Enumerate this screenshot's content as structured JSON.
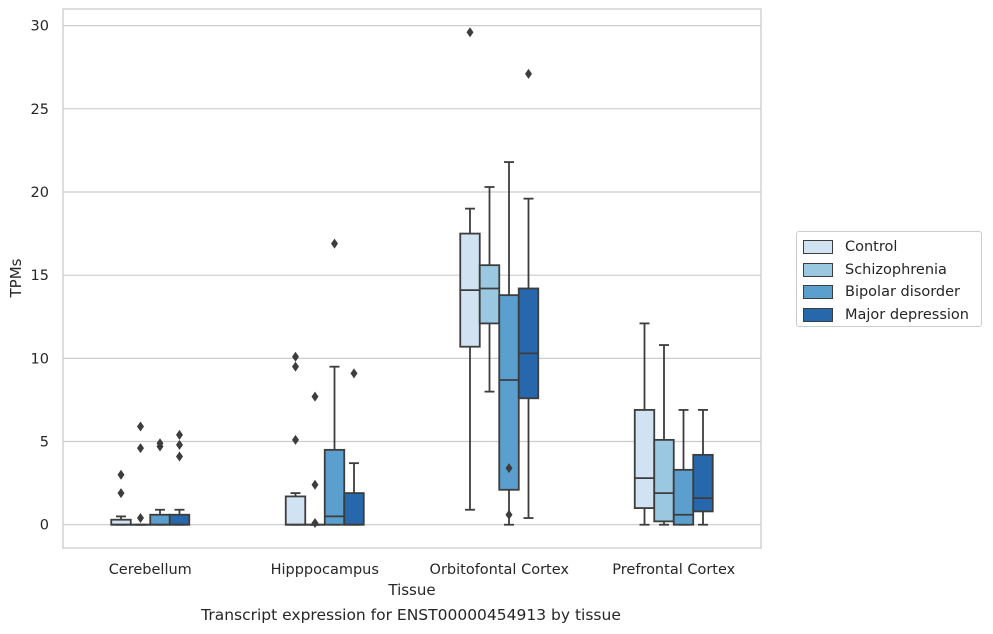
{
  "chart_data": {
    "type": "box",
    "title": "",
    "xlabel": "Tissue",
    "ylabel": "TPMs",
    "ylim": [
      -1.4,
      31.0
    ],
    "yticks": [
      0,
      5,
      10,
      15,
      20,
      25,
      30
    ],
    "grid": "horizontal",
    "legend_position": "right",
    "categories": [
      "Cerebellum",
      "Hipppocampus",
      "Orbitofontal Cortex",
      "Prefrontal Cortex"
    ],
    "series": [
      {
        "name": "Control",
        "color": "#d1e2f2",
        "boxes": [
          {
            "whislo": 0,
            "q1": 0,
            "med": 0,
            "q3": 0.3,
            "whishi": 0.5,
            "fliers": [
              1.9,
              3.0
            ]
          },
          {
            "whislo": 0,
            "q1": 0,
            "med": 0,
            "q3": 1.7,
            "whishi": 1.9,
            "fliers": [
              5.1,
              9.5,
              10.1
            ]
          },
          {
            "whislo": 0.9,
            "q1": 10.7,
            "med": 14.1,
            "q3": 17.5,
            "whishi": 19.0,
            "fliers": [
              29.6
            ]
          },
          {
            "whislo": 0,
            "q1": 1.0,
            "med": 2.8,
            "q3": 6.9,
            "whishi": 12.1,
            "fliers": []
          }
        ]
      },
      {
        "name": "Schizophrenia",
        "color": "#9ac8e0",
        "boxes": [
          {
            "whislo": 0,
            "q1": 0,
            "med": 0,
            "q3": 0,
            "whishi": 0,
            "fliers": [
              0.4,
              4.6,
              5.9
            ]
          },
          {
            "whislo": 0,
            "q1": 0,
            "med": 0,
            "q3": 0,
            "whishi": 0,
            "fliers": [
              0.1,
              2.4,
              7.7
            ]
          },
          {
            "whislo": 8.0,
            "q1": 12.1,
            "med": 14.2,
            "q3": 15.6,
            "whishi": 20.3,
            "fliers": []
          },
          {
            "whislo": 0,
            "q1": 0.2,
            "med": 1.9,
            "q3": 5.1,
            "whishi": 10.8,
            "fliers": []
          }
        ]
      },
      {
        "name": "Bipolar disorder",
        "color": "#5a9fcd",
        "boxes": [
          {
            "whislo": 0,
            "q1": 0,
            "med": 0,
            "q3": 0.6,
            "whishi": 0.9,
            "fliers": [
              4.7,
              4.9
            ]
          },
          {
            "whislo": 0,
            "q1": 0,
            "med": 0.5,
            "q3": 4.5,
            "whishi": 9.5,
            "fliers": [
              16.9
            ]
          },
          {
            "whislo": 0,
            "q1": 2.1,
            "med": 8.7,
            "q3": 13.8,
            "whishi": 21.8,
            "fliers": [
              0.6,
              3.4
            ]
          },
          {
            "whislo": 0,
            "q1": 0,
            "med": 0.6,
            "q3": 3.3,
            "whishi": 6.9,
            "fliers": []
          }
        ]
      },
      {
        "name": "Major depression",
        "color": "#2668ab",
        "boxes": [
          {
            "whislo": 0,
            "q1": 0,
            "med": 0,
            "q3": 0.6,
            "whishi": 0.9,
            "fliers": [
              4.1,
              4.8,
              5.4
            ]
          },
          {
            "whislo": 0,
            "q1": 0,
            "med": 0,
            "q3": 1.9,
            "whishi": 3.7,
            "fliers": [
              9.1
            ]
          },
          {
            "whislo": 0.4,
            "q1": 7.6,
            "med": 10.3,
            "q3": 14.2,
            "whishi": 19.6,
            "fliers": [
              27.1
            ]
          },
          {
            "whislo": 0,
            "q1": 0.8,
            "med": 1.6,
            "q3": 4.2,
            "whishi": 6.9,
            "fliers": []
          }
        ]
      }
    ]
  },
  "caption": "Transcript expression for ENST00000454913 by tissue"
}
